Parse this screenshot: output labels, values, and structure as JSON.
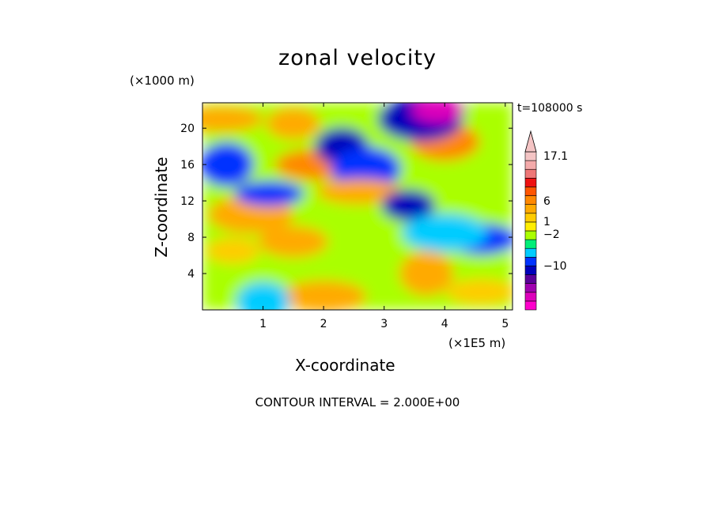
{
  "chart_data": {
    "type": "heatmap",
    "title": "zonal velocity",
    "xlabel": "X-coordinate",
    "ylabel": "Z-coordinate",
    "x_unit": "(×1E5 m)",
    "y_unit": "(×1000 m)",
    "time_label": "t=108000 s",
    "footer": "CONTOUR INTERVAL = 2.000E+00",
    "xlim": [
      0,
      5.12
    ],
    "ylim": [
      0,
      22.8
    ],
    "x_ticks": [
      1,
      2,
      3,
      4,
      5
    ],
    "y_ticks": [
      4,
      8,
      12,
      16,
      20
    ],
    "colorbar": {
      "labeled_levels": [
        "17.1",
        "6",
        "1",
        "−2",
        "−10"
      ],
      "colors": [
        "#ff00cc",
        "#dd00bb",
        "#a000b0",
        "#5a0099",
        "#0000bb",
        "#0033ff",
        "#00ccff",
        "#00ee77",
        "#aaff00",
        "#ffee00",
        "#ffcc00",
        "#ffaa00",
        "#ff8800",
        "#ff5500",
        "#ee1111",
        "#ee7777",
        "#f4aaaa",
        "#f4c4c4"
      ]
    },
    "features": [
      {
        "x": 0.5,
        "z": 6.5,
        "value": 5
      },
      {
        "x": 1.5,
        "z": 7.5,
        "value": 7
      },
      {
        "x": 0.8,
        "z": 10.5,
        "value": 6
      },
      {
        "x": 0.4,
        "z": 16.0,
        "value": -4
      },
      {
        "x": 1.1,
        "z": 12.8,
        "value": -4
      },
      {
        "x": 1.9,
        "z": 16.0,
        "value": 8
      },
      {
        "x": 2.3,
        "z": 18.0,
        "value": -6
      },
      {
        "x": 2.7,
        "z": 15.5,
        "value": -5
      },
      {
        "x": 2.6,
        "z": 13.0,
        "value": 6
      },
      {
        "x": 3.4,
        "z": 11.5,
        "value": -6
      },
      {
        "x": 4.0,
        "z": 18.5,
        "value": 8
      },
      {
        "x": 3.6,
        "z": 21.0,
        "value": -6
      },
      {
        "x": 3.9,
        "z": 22.0,
        "value": -11
      },
      {
        "x": 4.6,
        "z": 7.8,
        "value": -5
      },
      {
        "x": 4.0,
        "z": 8.5,
        "value": -3
      },
      {
        "x": 3.7,
        "z": 4.0,
        "value": 6
      },
      {
        "x": 4.6,
        "z": 2.0,
        "value": 5
      },
      {
        "x": 2.0,
        "z": 1.5,
        "value": 6
      },
      {
        "x": 1.0,
        "z": 1.0,
        "value": -3
      },
      {
        "x": 4.3,
        "z": 13.5,
        "value": 1
      },
      {
        "x": 0.3,
        "z": 21.0,
        "value": 7
      },
      {
        "x": 1.5,
        "z": 20.5,
        "value": 6
      }
    ]
  }
}
